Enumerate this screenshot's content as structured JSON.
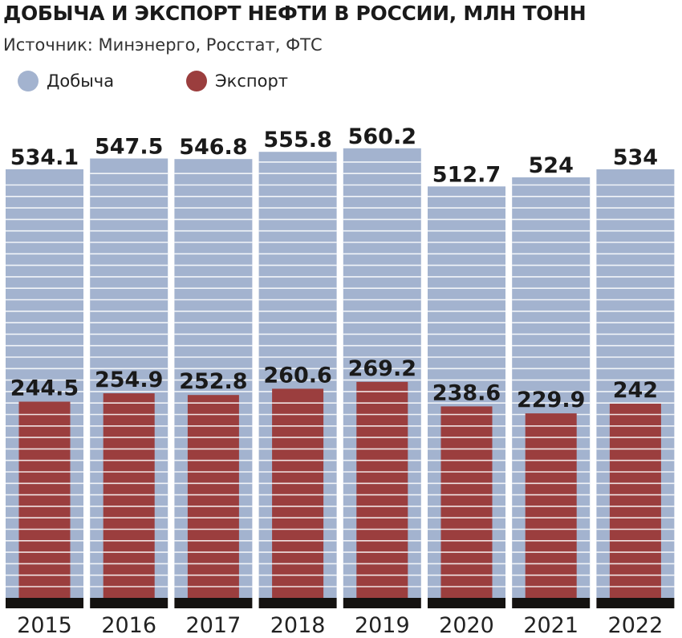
{
  "title": "ДОБЫЧА И ЭКСПОРТ НЕФТИ В РОССИИ, МЛН ТОНН",
  "source": "Источник: Минэнерго, Росстат, ФТС",
  "colors": {
    "production": "#a3b3cf",
    "export": "#9b3e3e",
    "stripe": "#ffffff",
    "baseline": "#141210"
  },
  "chart_data": {
    "type": "bar",
    "categories": [
      "2015",
      "2016",
      "2017",
      "2018",
      "2019",
      "2020",
      "2021",
      "2022"
    ],
    "series": [
      {
        "name": "Добыча",
        "values": [
          534.1,
          547.5,
          546.8,
          555.8,
          560.2,
          512.7,
          524,
          534
        ],
        "labels": [
          "534.1",
          "547.5",
          "546.8",
          "555.8",
          "560.2",
          "512.7",
          "524",
          "534"
        ]
      },
      {
        "name": "Экспорт",
        "values": [
          244.5,
          254.9,
          252.8,
          260.6,
          269.2,
          238.6,
          229.9,
          242
        ],
        "labels": [
          "244.5",
          "254.9",
          "252.8",
          "260.6",
          "269.2",
          "238.6",
          "229.9",
          "242"
        ]
      }
    ],
    "legend_position": "top-left",
    "overlap": true,
    "grid": false
  }
}
